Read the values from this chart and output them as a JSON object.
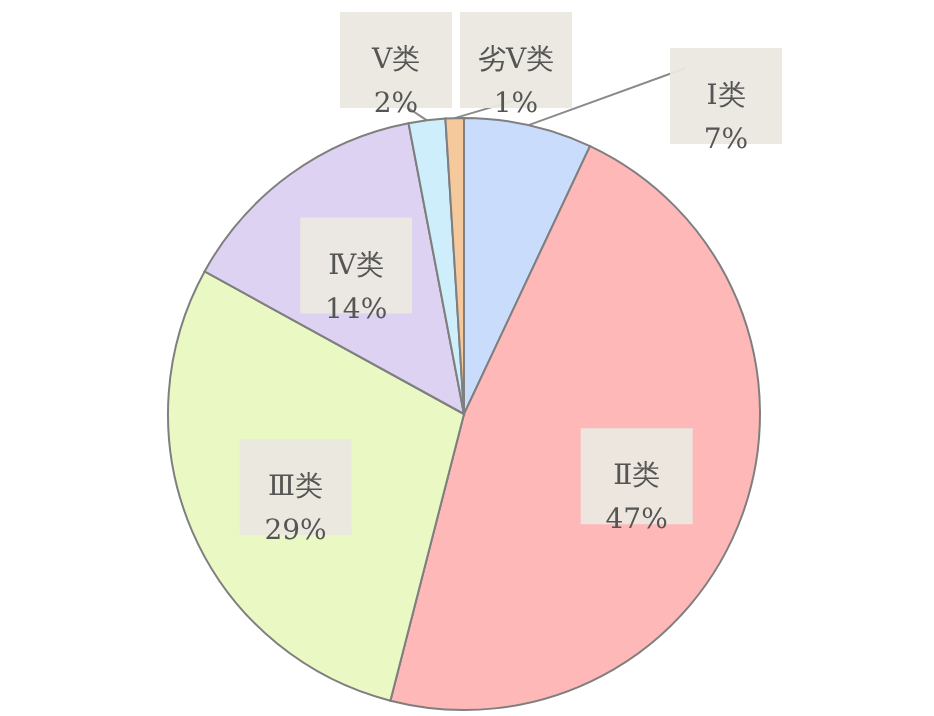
{
  "chart_data": {
    "type": "pie",
    "categories": [
      "Ⅰ类",
      "Ⅱ类",
      "Ⅲ类",
      "Ⅳ类",
      "Ⅴ类",
      "劣Ⅴ类"
    ],
    "values": [
      7,
      47,
      29,
      14,
      2,
      1
    ],
    "value_labels": [
      "7%",
      "47%",
      "29%",
      "14%",
      "2%",
      "1%"
    ],
    "colors": [
      "#c9dcfb",
      "#ffb8b8",
      "#eaf9c4",
      "#ddd2f1",
      "#cdeefa",
      "#f6c99c"
    ]
  }
}
